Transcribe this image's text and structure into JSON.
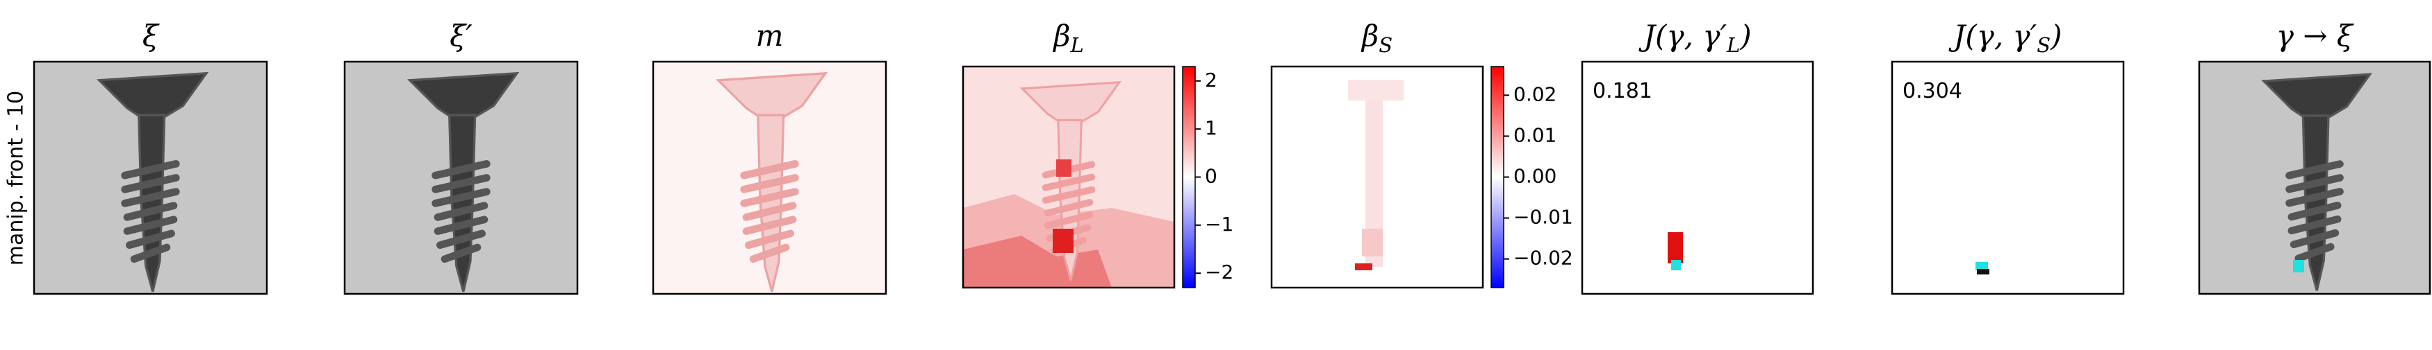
{
  "row_label": "manip. front - 10",
  "panels": [
    {
      "title": {
        "text": "ξ"
      }
    },
    {
      "title": {
        "text": "ξ′"
      }
    },
    {
      "title": {
        "text": "m"
      }
    },
    {
      "title": {
        "text": "β",
        "sub": "L"
      },
      "colorbar": {
        "lim": [
          -2.3,
          2.3
        ],
        "ticks": [
          2,
          1,
          0,
          {
            "value": -1,
            "label": "−1"
          },
          {
            "value": -2,
            "label": "−2"
          }
        ]
      }
    },
    {
      "title": {
        "text": "β",
        "sub": "S"
      },
      "colorbar": {
        "lim": [
          -0.027,
          0.027
        ],
        "ticks": [
          0.02,
          0.01,
          {
            "value": 0,
            "label": "0.00"
          },
          {
            "value": -0.01,
            "label": "−0.01"
          },
          {
            "value": -0.02,
            "label": "−0.02"
          }
        ]
      }
    },
    {
      "title": {
        "text": "J(γ, γ′",
        "sub": "L",
        "after": ")"
      },
      "annotation": "0.181"
    },
    {
      "title": {
        "text": "J(γ, γ′",
        "sub": "S",
        "after": ")"
      },
      "annotation": "0.304"
    },
    {
      "title": {
        "text": "γ → ξ"
      }
    }
  ]
}
